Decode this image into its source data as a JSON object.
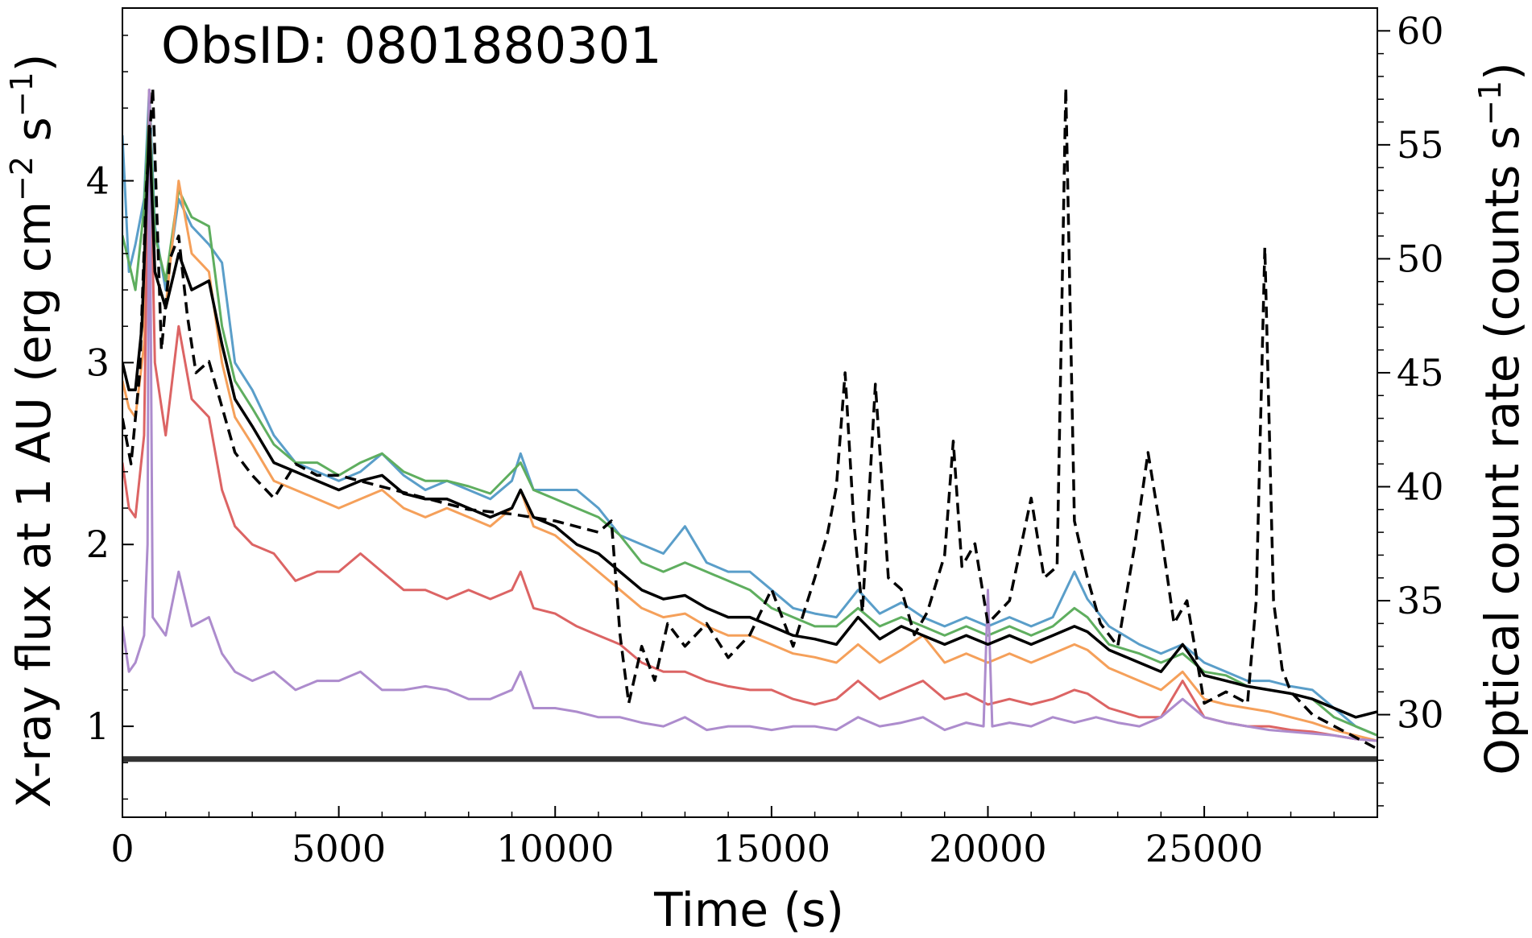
{
  "chart_data": {
    "type": "line",
    "annotation": "ObsID: 0801880301",
    "xlabel": "Time (s)",
    "ylabel_left": {
      "text": "X-ray flux at 1 AU (erg cm",
      "sup1": "−2",
      "mid": " s",
      "sup2": "−1",
      "end": ")"
    },
    "ylabel_right": {
      "text": "Optical count rate (counts s",
      "sup": "−1",
      "end": ")"
    },
    "xlim": [
      0,
      29000
    ],
    "ylim_left": [
      0.5,
      4.95
    ],
    "ylim_right": [
      25.5,
      61.0
    ],
    "x_ticks": [
      {
        "value": 0,
        "label": "0"
      },
      {
        "value": 5000,
        "label": "5000"
      },
      {
        "value": 10000,
        "label": "10000"
      },
      {
        "value": 15000,
        "label": "15000"
      },
      {
        "value": 20000,
        "label": "20000"
      },
      {
        "value": 25000,
        "label": "25000"
      }
    ],
    "y_ticks_left": [
      {
        "value": 1,
        "label": "1"
      },
      {
        "value": 2,
        "label": "2"
      },
      {
        "value": 3,
        "label": "3"
      },
      {
        "value": 4,
        "label": "4"
      }
    ],
    "y_ticks_right": [
      {
        "value": 30,
        "label": "30"
      },
      {
        "value": 35,
        "label": "35"
      },
      {
        "value": 40,
        "label": "40"
      },
      {
        "value": 45,
        "label": "45"
      },
      {
        "value": 50,
        "label": "50"
      },
      {
        "value": 55,
        "label": "55"
      },
      {
        "value": 60,
        "label": "60"
      }
    ],
    "baseline": {
      "value": 0.82,
      "color": "#333333"
    },
    "series": [
      {
        "color": "#5a9ec9",
        "axis": "left",
        "style": "solid",
        "x": [
          0,
          150,
          300,
          500,
          620,
          750,
          1000,
          1300,
          1600,
          2000,
          2300,
          2600,
          3000,
          3500,
          4000,
          4500,
          5000,
          5500,
          6000,
          6500,
          7000,
          7500,
          8000,
          8500,
          9000,
          9200,
          9500,
          10000,
          10500,
          11000,
          11500,
          12000,
          12500,
          13000,
          13500,
          14000,
          14500,
          15000,
          15500,
          16000,
          16500,
          17000,
          17500,
          18000,
          18500,
          19000,
          19500,
          20000,
          20500,
          21000,
          21500,
          22000,
          22300,
          22800,
          23500,
          24000,
          24500,
          25000,
          25500,
          26000,
          26500,
          27000,
          27500,
          28000,
          28500,
          29000
        ],
        "y": [
          4.25,
          3.5,
          3.65,
          3.9,
          4.5,
          3.75,
          3.4,
          3.9,
          3.75,
          3.65,
          3.55,
          3.0,
          2.85,
          2.6,
          2.45,
          2.4,
          2.35,
          2.4,
          2.5,
          2.38,
          2.3,
          2.35,
          2.3,
          2.25,
          2.35,
          2.5,
          2.3,
          2.3,
          2.3,
          2.2,
          2.05,
          2.0,
          1.95,
          2.1,
          1.9,
          1.85,
          1.85,
          1.75,
          1.65,
          1.62,
          1.6,
          1.75,
          1.62,
          1.68,
          1.6,
          1.55,
          1.6,
          1.55,
          1.6,
          1.55,
          1.6,
          1.85,
          1.7,
          1.55,
          1.45,
          1.4,
          1.45,
          1.35,
          1.3,
          1.25,
          1.25,
          1.22,
          1.2,
          1.1,
          1.0,
          0.95
        ]
      },
      {
        "color": "#5fae5f",
        "axis": "left",
        "style": "solid",
        "x": [
          0,
          150,
          300,
          500,
          620,
          750,
          1000,
          1300,
          1600,
          2000,
          2300,
          2600,
          3000,
          3500,
          4000,
          4500,
          5000,
          5500,
          6000,
          6500,
          7000,
          7500,
          8000,
          8500,
          9000,
          9200,
          9500,
          10000,
          10500,
          11000,
          11500,
          12000,
          12500,
          13000,
          13500,
          14000,
          14500,
          15000,
          15500,
          16000,
          16500,
          17000,
          17500,
          18000,
          18500,
          19000,
          19500,
          20000,
          20500,
          21000,
          21500,
          22000,
          22300,
          22800,
          23500,
          24000,
          24500,
          25000,
          25500,
          26000,
          26500,
          27000,
          27500,
          28000,
          28500,
          29000
        ],
        "y": [
          3.7,
          3.55,
          3.4,
          3.85,
          4.4,
          3.7,
          3.45,
          3.95,
          3.8,
          3.75,
          3.2,
          2.9,
          2.75,
          2.55,
          2.45,
          2.45,
          2.38,
          2.45,
          2.5,
          2.4,
          2.35,
          2.35,
          2.32,
          2.28,
          2.4,
          2.45,
          2.3,
          2.25,
          2.2,
          2.15,
          2.05,
          1.9,
          1.85,
          1.9,
          1.85,
          1.8,
          1.75,
          1.65,
          1.6,
          1.55,
          1.55,
          1.65,
          1.55,
          1.6,
          1.55,
          1.5,
          1.55,
          1.5,
          1.55,
          1.5,
          1.55,
          1.65,
          1.6,
          1.45,
          1.4,
          1.35,
          1.4,
          1.3,
          1.28,
          1.22,
          1.2,
          1.18,
          1.15,
          1.05,
          1.0,
          0.95
        ]
      },
      {
        "color": "#f5a05a",
        "axis": "left",
        "style": "solid",
        "x": [
          0,
          150,
          300,
          500,
          620,
          750,
          1000,
          1300,
          1600,
          2000,
          2300,
          2600,
          3000,
          3500,
          4000,
          4500,
          5000,
          5500,
          6000,
          6500,
          7000,
          7500,
          8000,
          8500,
          9000,
          9200,
          9500,
          10000,
          10500,
          11000,
          11500,
          12000,
          12500,
          13000,
          13500,
          14000,
          14500,
          15000,
          15500,
          16000,
          16500,
          17000,
          17500,
          18000,
          18500,
          19000,
          19500,
          20000,
          20500,
          21000,
          21500,
          22000,
          22300,
          22800,
          23500,
          24000,
          24500,
          25000,
          25500,
          26000,
          26500,
          27000,
          27500,
          28000,
          28500,
          29000
        ],
        "y": [
          2.9,
          2.75,
          2.7,
          3.1,
          4.2,
          3.5,
          3.3,
          4.0,
          3.6,
          3.5,
          3.0,
          2.7,
          2.55,
          2.35,
          2.3,
          2.25,
          2.2,
          2.25,
          2.3,
          2.2,
          2.15,
          2.2,
          2.15,
          2.1,
          2.2,
          2.3,
          2.1,
          2.05,
          1.95,
          1.85,
          1.75,
          1.65,
          1.6,
          1.62,
          1.55,
          1.5,
          1.5,
          1.45,
          1.4,
          1.38,
          1.35,
          1.45,
          1.35,
          1.42,
          1.5,
          1.35,
          1.4,
          1.35,
          1.4,
          1.35,
          1.4,
          1.45,
          1.42,
          1.32,
          1.25,
          1.2,
          1.3,
          1.15,
          1.12,
          1.1,
          1.08,
          1.05,
          1.02,
          0.98,
          0.95,
          0.92
        ]
      },
      {
        "color": "#dc6464",
        "axis": "left",
        "style": "solid",
        "x": [
          0,
          150,
          300,
          500,
          620,
          750,
          1000,
          1300,
          1600,
          2000,
          2300,
          2600,
          3000,
          3500,
          4000,
          4500,
          5000,
          5500,
          6000,
          6500,
          7000,
          7500,
          8000,
          8500,
          9000,
          9200,
          9500,
          10000,
          10500,
          11000,
          11500,
          12000,
          12500,
          13000,
          13500,
          14000,
          14500,
          15000,
          15500,
          16000,
          16500,
          17000,
          17500,
          18000,
          18500,
          19000,
          19500,
          20000,
          20500,
          21000,
          21500,
          22000,
          22300,
          22800,
          23500,
          24000,
          24500,
          25000,
          25500,
          26000,
          26500,
          27000,
          27500,
          28000,
          28500,
          29000
        ],
        "y": [
          2.45,
          2.2,
          2.15,
          2.6,
          4.5,
          3.0,
          2.6,
          3.2,
          2.8,
          2.7,
          2.3,
          2.1,
          2.0,
          1.95,
          1.8,
          1.85,
          1.85,
          1.95,
          1.85,
          1.75,
          1.75,
          1.7,
          1.75,
          1.7,
          1.75,
          1.85,
          1.65,
          1.62,
          1.55,
          1.5,
          1.45,
          1.35,
          1.3,
          1.3,
          1.25,
          1.22,
          1.2,
          1.2,
          1.15,
          1.12,
          1.15,
          1.25,
          1.15,
          1.2,
          1.25,
          1.15,
          1.18,
          1.12,
          1.15,
          1.12,
          1.15,
          1.2,
          1.18,
          1.1,
          1.05,
          1.05,
          1.25,
          1.05,
          1.02,
          1.0,
          1.0,
          0.98,
          0.97,
          0.95,
          0.93,
          0.92
        ]
      },
      {
        "color": "#ad8ccd",
        "axis": "left",
        "style": "solid",
        "x": [
          0,
          150,
          300,
          500,
          580,
          620,
          700,
          1000,
          1300,
          1600,
          2000,
          2300,
          2600,
          3000,
          3500,
          4000,
          4500,
          5000,
          5500,
          6000,
          6500,
          7000,
          7500,
          8000,
          8500,
          9000,
          9200,
          9500,
          10000,
          10500,
          11000,
          11500,
          12000,
          12500,
          13000,
          13500,
          14000,
          14500,
          15000,
          15500,
          16000,
          16500,
          17000,
          17500,
          18000,
          18500,
          19000,
          19500,
          19900,
          20000,
          20100,
          20500,
          21000,
          21500,
          22000,
          22500,
          23000,
          23500,
          24000,
          24500,
          25000,
          25500,
          26000,
          26500,
          27000,
          27500,
          28000,
          28500,
          29000
        ],
        "y": [
          1.55,
          1.3,
          1.35,
          1.5,
          2.0,
          4.5,
          1.6,
          1.5,
          1.85,
          1.55,
          1.6,
          1.4,
          1.3,
          1.25,
          1.3,
          1.2,
          1.25,
          1.25,
          1.3,
          1.2,
          1.2,
          1.22,
          1.2,
          1.15,
          1.15,
          1.2,
          1.3,
          1.1,
          1.1,
          1.08,
          1.05,
          1.05,
          1.02,
          1.0,
          1.05,
          0.98,
          1.0,
          1.0,
          0.98,
          1.0,
          1.0,
          0.98,
          1.05,
          1.0,
          1.02,
          1.05,
          0.98,
          1.02,
          1.0,
          1.75,
          1.0,
          1.02,
          1.0,
          1.05,
          1.02,
          1.05,
          1.02,
          1.0,
          1.05,
          1.15,
          1.05,
          1.02,
          1.0,
          0.98,
          0.97,
          0.96,
          0.95,
          0.93,
          0.92
        ]
      },
      {
        "color": "#000000",
        "axis": "left",
        "style": "solid",
        "x": [
          0,
          150,
          300,
          450,
          620,
          750,
          1000,
          1300,
          1600,
          2000,
          2300,
          2600,
          3000,
          3500,
          4000,
          4500,
          5000,
          5500,
          6000,
          6500,
          7000,
          7500,
          8000,
          8500,
          9000,
          9200,
          9500,
          10000,
          10500,
          11000,
          11500,
          12000,
          12500,
          13000,
          13500,
          14000,
          14500,
          15000,
          15500,
          16000,
          16500,
          17000,
          17500,
          18000,
          18500,
          19000,
          19500,
          20000,
          20500,
          21000,
          21500,
          22000,
          22300,
          22800,
          23500,
          24000,
          24500,
          25000,
          25500,
          26000,
          26500,
          27000,
          27500,
          28000,
          28500,
          29000
        ],
        "y": [
          3.0,
          2.85,
          2.85,
          3.2,
          4.3,
          3.5,
          3.3,
          3.6,
          3.4,
          3.45,
          3.1,
          2.8,
          2.65,
          2.45,
          2.4,
          2.35,
          2.3,
          2.35,
          2.38,
          2.28,
          2.25,
          2.25,
          2.2,
          2.15,
          2.2,
          2.3,
          2.15,
          2.1,
          2.0,
          1.95,
          1.85,
          1.75,
          1.7,
          1.72,
          1.65,
          1.6,
          1.6,
          1.55,
          1.5,
          1.48,
          1.45,
          1.6,
          1.48,
          1.55,
          1.5,
          1.45,
          1.5,
          1.45,
          1.5,
          1.45,
          1.5,
          1.55,
          1.52,
          1.42,
          1.35,
          1.3,
          1.45,
          1.28,
          1.25,
          1.22,
          1.2,
          1.18,
          1.15,
          1.1,
          1.05,
          1.08
        ]
      },
      {
        "color": "#000000",
        "axis": "right",
        "style": "dashed",
        "x": [
          0,
          200,
          400,
          550,
          700,
          900,
          1100,
          1300,
          1500,
          1700,
          2000,
          2300,
          2600,
          3000,
          3500,
          4000,
          4500,
          5000,
          6000,
          7000,
          8000,
          9000,
          10000,
          11000,
          11300,
          11500,
          11700,
          12000,
          12300,
          12600,
          13000,
          13500,
          14000,
          14500,
          15000,
          15500,
          16000,
          16300,
          16500,
          16700,
          16900,
          17100,
          17400,
          17700,
          18000,
          18300,
          18600,
          19000,
          19200,
          19400,
          19700,
          20000,
          20500,
          21000,
          21300,
          21600,
          21800,
          22000,
          22300,
          22600,
          23000,
          23400,
          23700,
          24000,
          24300,
          24600,
          25000,
          25500,
          26000,
          26200,
          26400,
          26600,
          26800,
          27000,
          27500,
          28000,
          28500,
          29000
        ],
        "y": [
          43.0,
          41.0,
          45.0,
          53.0,
          57.5,
          46.0,
          50.0,
          51.0,
          47.5,
          45.0,
          45.5,
          43.5,
          41.5,
          40.5,
          39.5,
          41.0,
          40.5,
          40.5,
          40.0,
          39.5,
          39.0,
          38.8,
          38.5,
          38.0,
          38.5,
          33.5,
          30.5,
          33.0,
          31.5,
          34.0,
          33.0,
          34.0,
          32.5,
          33.5,
          35.5,
          33.0,
          36.0,
          38.0,
          40.0,
          45.0,
          38.5,
          34.5,
          44.5,
          36.0,
          35.5,
          33.5,
          34.5,
          37.0,
          42.0,
          36.5,
          37.5,
          34.0,
          35.0,
          39.5,
          36.0,
          36.5,
          57.5,
          38.5,
          36.0,
          34.0,
          33.0,
          37.5,
          41.5,
          38.0,
          34.0,
          35.0,
          30.5,
          31.0,
          30.5,
          35.0,
          50.5,
          35.0,
          32.0,
          31.0,
          30.0,
          29.5,
          29.0,
          28.5
        ]
      }
    ]
  }
}
